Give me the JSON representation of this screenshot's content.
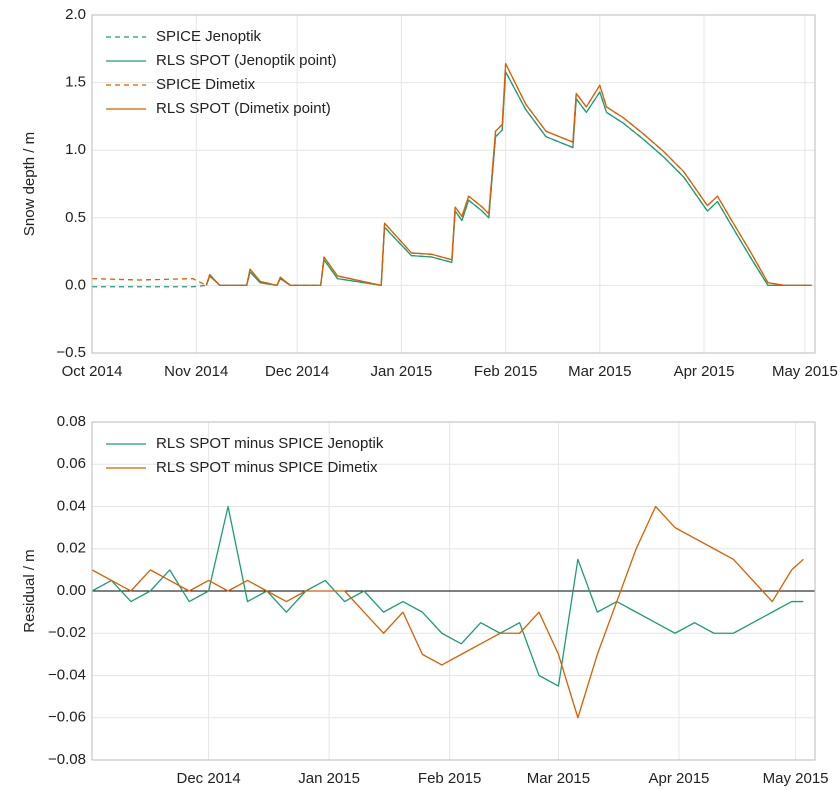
{
  "chart_data": [
    {
      "type": "line",
      "y_label": "Snow depth / m",
      "legend": "upper left",
      "grid": true,
      "xlim": [
        "2014-10-01",
        "2015-05-04"
      ],
      "ylim": [
        -0.5,
        2.0
      ],
      "xticks": [
        {
          "value": "2014-10-01",
          "label": "Oct 2014"
        },
        {
          "value": "2014-11-01",
          "label": "Nov 2014"
        },
        {
          "value": "2014-12-01",
          "label": "Dec 2014"
        },
        {
          "value": "2015-01-01",
          "label": "Jan 2015"
        },
        {
          "value": "2015-02-01",
          "label": "Feb 2015"
        },
        {
          "value": "2015-03-01",
          "label": "Mar 2015"
        },
        {
          "value": "2015-04-01",
          "label": "Apr 2015"
        },
        {
          "value": "2015-05-01",
          "label": "May 2015"
        }
      ],
      "yticks": [
        {
          "value": -0.5,
          "label": "−0.5"
        },
        {
          "value": 0,
          "label": "0.0"
        },
        0.5,
        {
          "value": 1,
          "label": "1.0"
        },
        1.5,
        {
          "value": 2,
          "label": "2.0"
        }
      ],
      "x": [
        "2014-10-01",
        "2014-10-15",
        "2014-10-31",
        "2014-11-04",
        "2014-11-05",
        "2014-11-08",
        "2014-11-16",
        "2014-11-17",
        "2014-11-20",
        "2014-11-25",
        "2014-11-26",
        "2014-11-29",
        "2014-12-08",
        "2014-12-09",
        "2014-12-13",
        "2014-12-26",
        "2014-12-27",
        "2015-01-04",
        "2015-01-10",
        "2015-01-16",
        "2015-01-17",
        "2015-01-19",
        "2015-01-21",
        "2015-01-25",
        "2015-01-27",
        "2015-01-29",
        "2015-01-31",
        "2015-02-01",
        "2015-02-07",
        "2015-02-13",
        "2015-02-21",
        "2015-02-22",
        "2015-02-25",
        "2015-03-01",
        "2015-03-03",
        "2015-03-08",
        "2015-03-14",
        "2015-03-20",
        "2015-03-26",
        "2015-04-02",
        "2015-04-05",
        "2015-04-09",
        "2015-04-15",
        "2015-04-20",
        "2015-04-25",
        "2015-05-03"
      ],
      "series": [
        {
          "name": "SPICE Jenoptik",
          "color": "#1b9e77",
          "style": "dashed",
          "values": [
            -0.01,
            -0.01,
            -0.01,
            0.0,
            0.07,
            0.0,
            0.0,
            0.1,
            0.02,
            0.0,
            0.05,
            0.0,
            0.0,
            0.19,
            0.05,
            0.0,
            0.43,
            0.22,
            0.21,
            0.17,
            0.55,
            0.48,
            0.63,
            0.55,
            0.5,
            1.1,
            1.15,
            1.58,
            1.3,
            1.1,
            1.02,
            1.38,
            1.28,
            1.43,
            1.28,
            1.2,
            1.08,
            0.95,
            0.8,
            0.55,
            0.62,
            0.45,
            0.2,
            0.0,
            0.0,
            0.0
          ]
        },
        {
          "name": "RLS SPOT (Jenoptik point)",
          "color": "#1b9e77",
          "style": "solid",
          "values": [
            null,
            null,
            null,
            0.0,
            0.07,
            0.0,
            0.0,
            0.1,
            0.02,
            0.0,
            0.05,
            0.0,
            0.0,
            0.19,
            0.05,
            0.0,
            0.43,
            0.22,
            0.21,
            0.17,
            0.55,
            0.48,
            0.63,
            0.55,
            0.5,
            1.1,
            1.15,
            1.58,
            1.3,
            1.1,
            1.02,
            1.38,
            1.28,
            1.43,
            1.28,
            1.2,
            1.08,
            0.95,
            0.8,
            0.55,
            0.62,
            0.45,
            0.2,
            0.0,
            0.0,
            0.0
          ]
        },
        {
          "name": "SPICE Dimetix",
          "color": "#d95f02",
          "style": "dashed",
          "values": [
            0.05,
            0.04,
            0.05,
            0.0,
            0.08,
            0.0,
            0.0,
            0.12,
            0.03,
            0.0,
            0.06,
            0.0,
            0.0,
            0.21,
            0.07,
            0.0,
            0.46,
            0.24,
            0.23,
            0.19,
            0.58,
            0.51,
            0.66,
            0.58,
            0.53,
            1.14,
            1.19,
            1.64,
            1.34,
            1.14,
            1.06,
            1.42,
            1.32,
            1.48,
            1.32,
            1.24,
            1.12,
            0.99,
            0.84,
            0.59,
            0.66,
            0.49,
            0.24,
            0.02,
            0.0,
            0.0
          ]
        },
        {
          "name": "RLS SPOT (Dimetix point)",
          "color": "#d95f02",
          "style": "solid",
          "values": [
            null,
            null,
            null,
            0.0,
            0.08,
            0.0,
            0.0,
            0.12,
            0.03,
            0.0,
            0.06,
            0.0,
            0.0,
            0.21,
            0.07,
            0.0,
            0.46,
            0.24,
            0.23,
            0.19,
            0.58,
            0.51,
            0.66,
            0.58,
            0.53,
            1.14,
            1.19,
            1.64,
            1.34,
            1.14,
            1.06,
            1.42,
            1.32,
            1.48,
            1.32,
            1.24,
            1.12,
            0.99,
            0.84,
            0.59,
            0.66,
            0.49,
            0.24,
            0.02,
            0.0,
            0.0
          ]
        }
      ]
    },
    {
      "type": "line",
      "y_label": "Residual / m",
      "legend": "upper left",
      "grid": true,
      "reference_line": 0,
      "xlim": [
        "2014-11-01",
        "2015-05-06"
      ],
      "ylim": [
        -0.08,
        0.08
      ],
      "xticks": [
        {
          "value": "2014-12-01",
          "label": "Dec 2014"
        },
        {
          "value": "2015-01-01",
          "label": "Jan 2015"
        },
        {
          "value": "2015-02-01",
          "label": "Feb 2015"
        },
        {
          "value": "2015-03-01",
          "label": "Mar 2015"
        },
        {
          "value": "2015-04-01",
          "label": "Apr 2015"
        },
        {
          "value": "2015-05-01",
          "label": "May 2015"
        }
      ],
      "yticks": [
        {
          "value": -0.08,
          "label": "−0.08"
        },
        {
          "value": -0.06,
          "label": "−0.06"
        },
        {
          "value": -0.04,
          "label": "−0.04"
        },
        {
          "value": -0.02,
          "label": "−0.02"
        },
        {
          "value": 0,
          "label": "0.00"
        },
        0.02,
        0.04,
        0.06,
        0.08
      ],
      "x": [
        "2014-11-01",
        "2014-11-06",
        "2014-11-11",
        "2014-11-16",
        "2014-11-21",
        "2014-11-26",
        "2014-12-01",
        "2014-12-06",
        "2014-12-11",
        "2014-12-16",
        "2014-12-21",
        "2014-12-26",
        "2014-12-31",
        "2015-01-05",
        "2015-01-10",
        "2015-01-15",
        "2015-01-20",
        "2015-01-25",
        "2015-01-30",
        "2015-02-04",
        "2015-02-09",
        "2015-02-14",
        "2015-02-19",
        "2015-02-24",
        "2015-03-01",
        "2015-03-06",
        "2015-03-11",
        "2015-03-16",
        "2015-03-21",
        "2015-03-26",
        "2015-03-31",
        "2015-04-05",
        "2015-04-10",
        "2015-04-15",
        "2015-04-20",
        "2015-04-25",
        "2015-04-30",
        "2015-05-03"
      ],
      "series": [
        {
          "name": "RLS SPOT minus SPICE Jenoptik",
          "color": "#1b9e77",
          "style": "solid",
          "values": [
            0.0,
            0.005,
            -0.005,
            0.0,
            0.01,
            -0.005,
            0.0,
            0.04,
            -0.005,
            0.0,
            -0.01,
            0.0,
            0.005,
            -0.005,
            0.0,
            -0.01,
            -0.005,
            -0.01,
            -0.02,
            -0.025,
            -0.015,
            -0.02,
            -0.015,
            -0.04,
            -0.045,
            0.015,
            -0.01,
            -0.005,
            -0.01,
            -0.015,
            -0.02,
            -0.015,
            -0.02,
            -0.02,
            -0.015,
            -0.01,
            -0.005,
            -0.005
          ]
        },
        {
          "name": "RLS SPOT minus SPICE Dimetix",
          "color": "#d95f02",
          "style": "solid",
          "values": [
            0.01,
            0.005,
            0.0,
            0.01,
            0.005,
            0.0,
            0.005,
            0.0,
            0.005,
            0.0,
            -0.005,
            0.0,
            0.0,
            0.0,
            -0.01,
            -0.02,
            -0.01,
            -0.03,
            -0.035,
            -0.03,
            -0.025,
            -0.02,
            -0.02,
            -0.01,
            -0.03,
            -0.06,
            -0.03,
            -0.005,
            0.02,
            0.04,
            0.03,
            0.025,
            0.02,
            0.015,
            0.005,
            -0.005,
            0.01,
            0.015
          ]
        }
      ]
    }
  ]
}
